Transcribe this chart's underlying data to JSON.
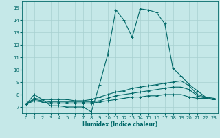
{
  "xlabel": "Humidex (Indice chaleur)",
  "xlim": [
    -0.5,
    23.5
  ],
  "ylim": [
    6.5,
    15.5
  ],
  "yticks": [
    7,
    8,
    9,
    10,
    11,
    12,
    13,
    14,
    15
  ],
  "xticks": [
    0,
    1,
    2,
    3,
    4,
    5,
    6,
    7,
    8,
    9,
    10,
    11,
    12,
    13,
    14,
    15,
    16,
    17,
    18,
    19,
    20,
    21,
    22,
    23
  ],
  "bg_color": "#c5e8e8",
  "grid_color": "#a8d0d0",
  "line_color": "#006868",
  "series": [
    {
      "x": [
        0,
        1,
        2,
        3,
        4,
        5,
        6,
        7,
        8,
        9,
        10,
        11,
        12,
        13,
        14,
        15,
        16,
        17,
        18,
        19,
        20,
        21,
        22,
        23
      ],
      "y": [
        7.2,
        8.0,
        7.6,
        7.1,
        7.1,
        7.0,
        7.0,
        7.0,
        6.6,
        8.8,
        11.2,
        14.8,
        14.0,
        12.6,
        14.9,
        14.8,
        14.6,
        13.7,
        10.1,
        9.5,
        8.8,
        8.3,
        7.8,
        7.6
      ]
    },
    {
      "x": [
        0,
        1,
        2,
        3,
        4,
        5,
        6,
        7,
        8,
        9,
        10,
        11,
        12,
        13,
        14,
        15,
        16,
        17,
        18,
        19,
        20,
        21,
        22,
        23
      ],
      "y": [
        7.2,
        7.7,
        7.6,
        7.6,
        7.6,
        7.6,
        7.5,
        7.5,
        7.6,
        7.8,
        8.0,
        8.2,
        8.3,
        8.5,
        8.6,
        8.7,
        8.8,
        8.9,
        9.0,
        9.1,
        8.7,
        8.0,
        7.8,
        7.7
      ]
    },
    {
      "x": [
        0,
        1,
        2,
        3,
        4,
        5,
        6,
        7,
        8,
        9,
        10,
        11,
        12,
        13,
        14,
        15,
        16,
        17,
        18,
        19,
        20,
        21,
        22,
        23
      ],
      "y": [
        7.2,
        7.6,
        7.5,
        7.4,
        7.4,
        7.4,
        7.4,
        7.4,
        7.4,
        7.5,
        7.7,
        7.9,
        8.0,
        8.1,
        8.2,
        8.3,
        8.4,
        8.5,
        8.6,
        8.6,
        8.4,
        7.9,
        7.7,
        7.6
      ]
    },
    {
      "x": [
        0,
        1,
        2,
        3,
        4,
        5,
        6,
        7,
        8,
        9,
        10,
        11,
        12,
        13,
        14,
        15,
        16,
        17,
        18,
        19,
        20,
        21,
        22,
        23
      ],
      "y": [
        7.2,
        7.5,
        7.4,
        7.3,
        7.3,
        7.3,
        7.3,
        7.3,
        7.3,
        7.4,
        7.5,
        7.6,
        7.7,
        7.8,
        7.8,
        7.9,
        7.9,
        8.0,
        8.0,
        8.0,
        7.8,
        7.7,
        7.7,
        7.6
      ]
    }
  ]
}
